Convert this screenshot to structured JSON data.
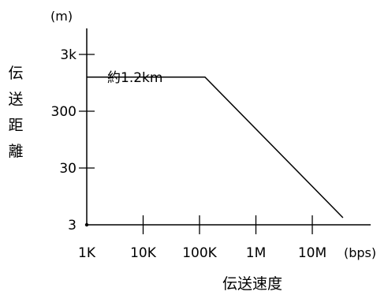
{
  "chart_data": {
    "type": "line",
    "title": "",
    "xlabel": "伝送速度",
    "ylabel": "伝送距離",
    "x_unit": "(bps)",
    "y_unit": "(m)",
    "x_scale": "log",
    "y_scale": "log",
    "x_ticks": [
      {
        "value": 1000,
        "label": "1K"
      },
      {
        "value": 10000,
        "label": "10K"
      },
      {
        "value": 100000,
        "label": "100K"
      },
      {
        "value": 1000000,
        "label": "1M"
      },
      {
        "value": 10000000,
        "label": "10M"
      }
    ],
    "y_ticks": [
      {
        "value": 3,
        "label": "3"
      },
      {
        "value": 30,
        "label": "30"
      },
      {
        "value": 300,
        "label": "300"
      },
      {
        "value": 3000,
        "label": "3k"
      }
    ],
    "xlim": [
      1000,
      30000000
    ],
    "ylim": [
      3,
      10000
    ],
    "grid": false,
    "series": [
      {
        "points": [
          {
            "x": 1000,
            "y": 1200
          },
          {
            "x": 125000,
            "y": 1200
          },
          {
            "x": 35000000,
            "y": 4
          }
        ]
      }
    ],
    "annotations": [
      {
        "text": "約1.2km"
      }
    ]
  }
}
